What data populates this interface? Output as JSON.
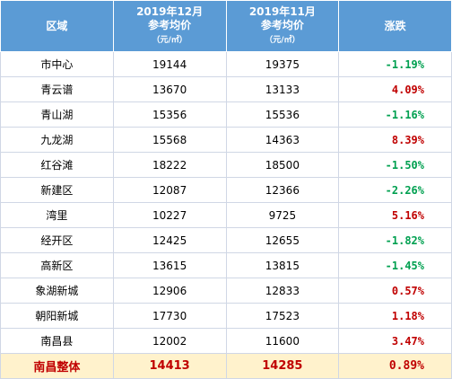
{
  "table": {
    "header": [
      [
        "区域"
      ],
      [
        "2019年12月",
        "参考均价",
        "（元/㎡）"
      ],
      [
        "2019年11月",
        "参考均价",
        "（元/㎡）"
      ],
      [
        "涨跌"
      ]
    ],
    "rows": [
      [
        "市中心",
        "19144",
        "19375",
        "-1.19%"
      ],
      [
        "青云谱",
        "13670",
        "13133",
        "4.09%"
      ],
      [
        "青山湖",
        "15356",
        "15536",
        "-1.16%"
      ],
      [
        "九龙湖",
        "15568",
        "14363",
        "8.39%"
      ],
      [
        "红谷滩",
        "18222",
        "18500",
        "-1.50%"
      ],
      [
        "新建区",
        "12087",
        "12366",
        "-2.26%"
      ],
      [
        "湾里",
        "10227",
        "9725",
        "5.16%"
      ],
      [
        "经开区",
        "12425",
        "12655",
        "-1.82%"
      ],
      [
        "高新区",
        "13615",
        "13815",
        "-1.45%"
      ],
      [
        "象湖新城",
        "12906",
        "12833",
        "0.57%"
      ],
      [
        "朝阳新城",
        "17730",
        "17523",
        "1.18%"
      ],
      [
        "南昌县",
        "12002",
        "11600",
        "3.47%"
      ]
    ],
    "total": [
      "南昌整体",
      "14413",
      "14285",
      "0.89%"
    ]
  }
}
